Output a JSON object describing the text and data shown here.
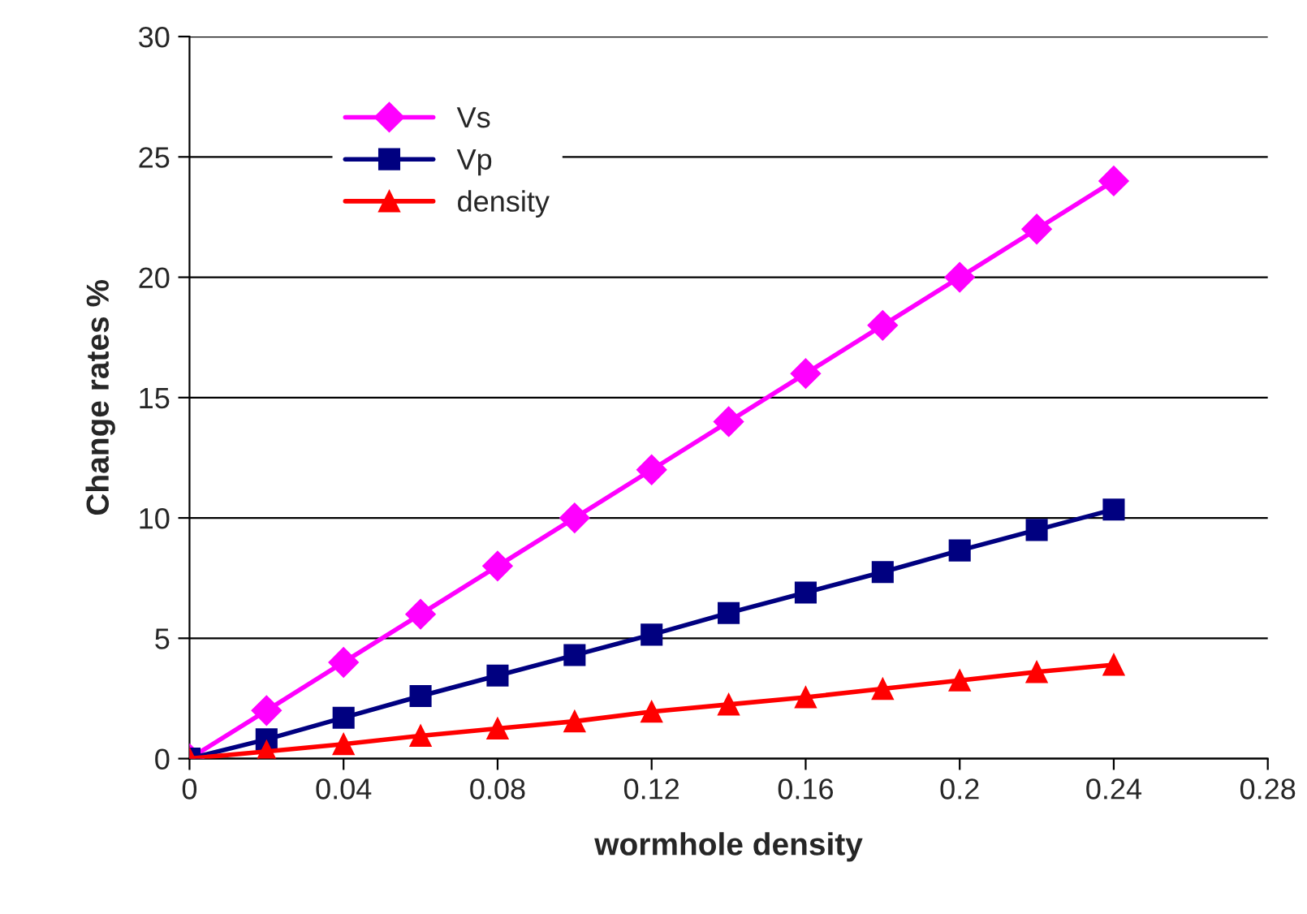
{
  "chart_data": {
    "type": "line",
    "xlabel": "wormhole density",
    "ylabel": "Change rates %",
    "x": [
      0,
      0.02,
      0.04,
      0.06,
      0.08,
      0.1,
      0.12,
      0.14,
      0.16,
      0.18,
      0.2,
      0.22,
      0.24
    ],
    "series": [
      {
        "name": "Vs",
        "color": "#ff00ff",
        "marker": "diamond",
        "values": [
          0,
          2,
          4,
          6,
          8,
          10,
          12,
          14,
          16,
          18,
          20,
          22,
          24
        ]
      },
      {
        "name": "Vp",
        "color": "#000080",
        "marker": "square",
        "values": [
          0,
          0.8,
          1.7,
          2.6,
          3.45,
          4.3,
          5.15,
          6.05,
          6.9,
          7.75,
          8.65,
          9.5,
          10.35
        ]
      },
      {
        "name": "density",
        "color": "#ff0000",
        "marker": "triangle",
        "values": [
          0,
          0.3,
          0.6,
          0.95,
          1.25,
          1.55,
          1.95,
          2.25,
          2.55,
          2.9,
          3.25,
          3.6,
          3.9
        ]
      }
    ],
    "xlim": [
      0,
      0.28
    ],
    "xticks": [
      0,
      0.04,
      0.08,
      0.12,
      0.16,
      0.2,
      0.24,
      0.28
    ],
    "ylim": [
      0,
      30
    ],
    "yticks": [
      0,
      5,
      10,
      15,
      20,
      25,
      30
    ],
    "grid": "y",
    "legend": "top left"
  }
}
